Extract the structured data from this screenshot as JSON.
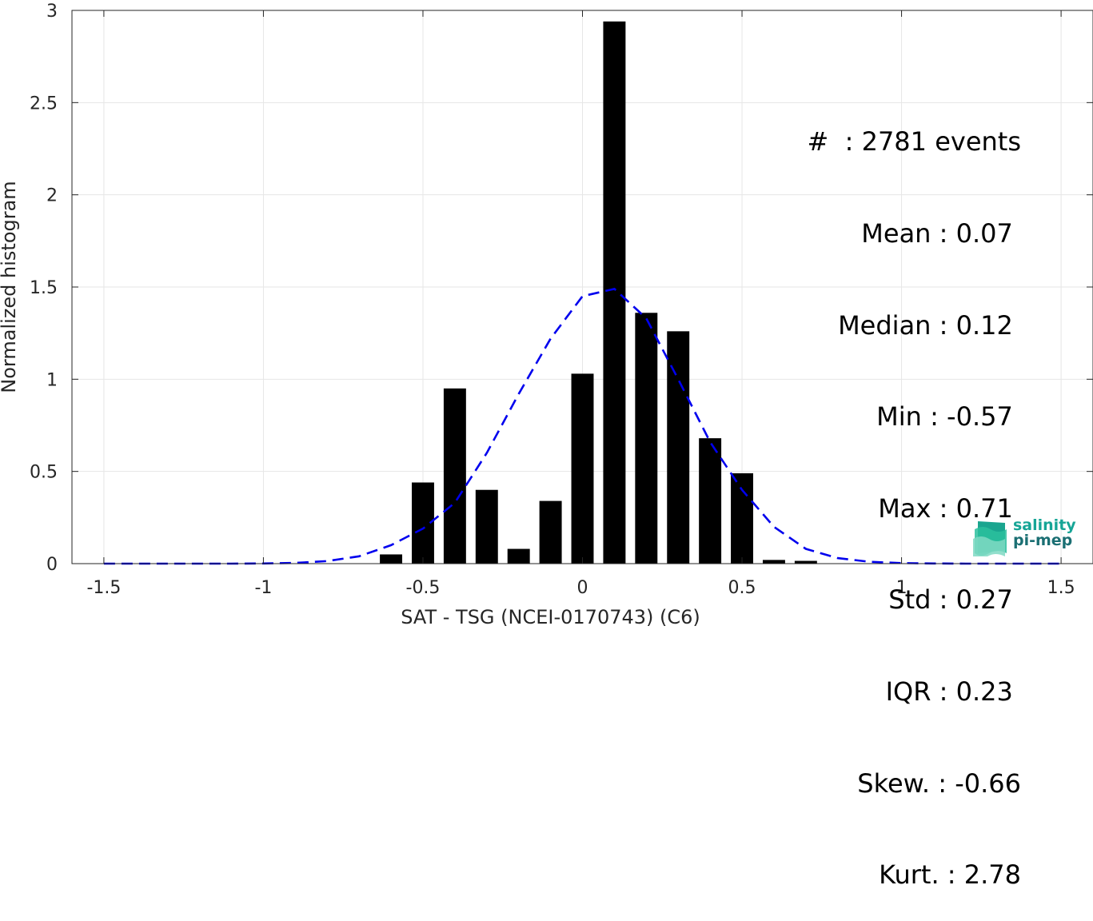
{
  "chart_data": {
    "type": "bar",
    "xlabel": "SAT - TSG (NCEI-0170743) (C6)",
    "ylabel": "Normalized histogram",
    "xlim": [
      -1.6,
      1.6
    ],
    "ylim": [
      0,
      3
    ],
    "grid": true,
    "xticks": [
      -1.5,
      -1,
      -0.5,
      0,
      0.5,
      1,
      1.5
    ],
    "xtick_labels": [
      "-1.5",
      "-1",
      "-0.5",
      "0",
      "0.5",
      "1",
      "1.5"
    ],
    "yticks": [
      0,
      0.5,
      1,
      1.5,
      2,
      2.5,
      3
    ],
    "ytick_labels": [
      "0",
      "0.5",
      "1",
      "1.5",
      "2",
      "2.5",
      "3"
    ],
    "bin_width": 0.07,
    "series": [
      {
        "type": "bar",
        "color": "#000000",
        "x": [
          -0.6,
          -0.5,
          -0.4,
          -0.3,
          -0.2,
          -0.1,
          0.0,
          0.1,
          0.2,
          0.3,
          0.4,
          0.5,
          0.6,
          0.7
        ],
        "values": [
          0.05,
          0.44,
          0.95,
          0.4,
          0.08,
          0.34,
          1.03,
          2.94,
          1.36,
          1.26,
          0.68,
          0.49,
          0.02,
          0.015
        ]
      },
      {
        "type": "line",
        "style": "dashed",
        "color": "#0000ee",
        "x": [
          -1.5,
          -1.4,
          -1.3,
          -1.2,
          -1.1,
          -1.0,
          -0.9,
          -0.8,
          -0.7,
          -0.6,
          -0.5,
          -0.4,
          -0.3,
          -0.2,
          -0.1,
          0.0,
          0.1,
          0.2,
          0.3,
          0.4,
          0.5,
          0.6,
          0.7,
          0.8,
          0.9,
          1.0,
          1.1,
          1.2,
          1.3,
          1.4,
          1.5
        ],
        "values": [
          0,
          0,
          0,
          0,
          0,
          0.001,
          0.004,
          0.014,
          0.04,
          0.1,
          0.19,
          0.33,
          0.6,
          0.92,
          1.22,
          1.45,
          1.49,
          1.33,
          1.0,
          0.66,
          0.4,
          0.2,
          0.08,
          0.03,
          0.01,
          0.003,
          0.001,
          0,
          0,
          0,
          0
        ]
      }
    ]
  },
  "stats": [
    "#  : 2781 events",
    "Mean : 0.07 ",
    "Median : 0.12 ",
    "Min : -0.57 ",
    "Max : 0.71 ",
    "Std : 0.27 ",
    "IQR : 0.23 ",
    "Skew. : -0.66",
    "Kurt. : 2.78"
  ],
  "logo": {
    "line1": "salinity",
    "line2": "pi-mep",
    "color": "#16a596"
  }
}
